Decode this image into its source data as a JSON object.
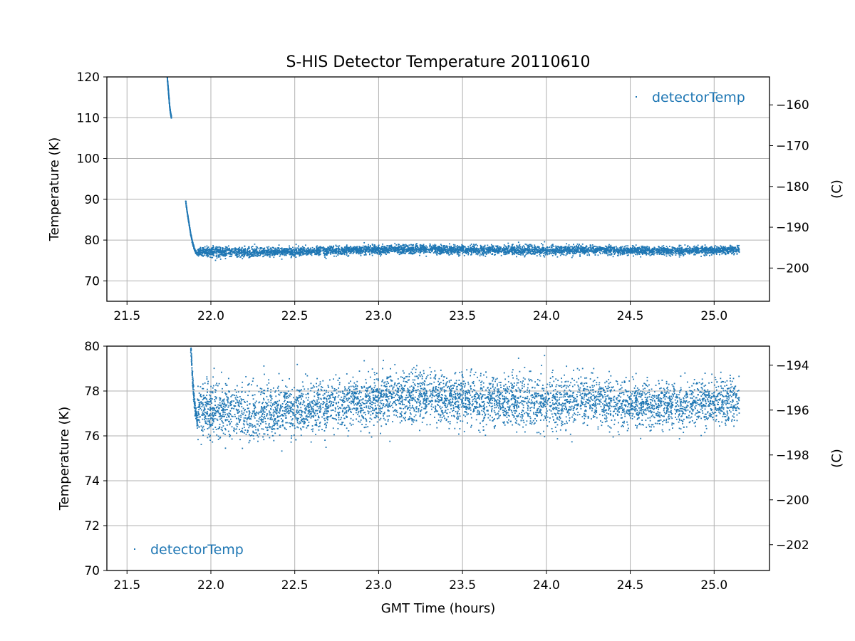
{
  "figure": {
    "title": "S-HIS Detector Temperature 20110610",
    "xlabel": "GMT Time (hours)"
  },
  "colors": {
    "series": "#1f77b4",
    "grid": "#b0b0b0",
    "axes": "#000000",
    "background": "#ffffff"
  },
  "chart_data": [
    {
      "type": "scatter",
      "title": "S-HIS Detector Temperature 20110610",
      "xlabel": "",
      "ylabel": "Temperature (K)",
      "ylabel_right": "(C)",
      "xlim": [
        21.38,
        25.33
      ],
      "ylim": [
        65,
        120
      ],
      "ylim_right": [
        -208.15,
        -153.15
      ],
      "xticks": [
        "21.5",
        "22.0",
        "22.5",
        "23.0",
        "23.5",
        "24.0",
        "24.5",
        "25.0"
      ],
      "yticks": [
        "70",
        "80",
        "90",
        "100",
        "110",
        "120"
      ],
      "yticks_right": [
        "−160",
        "−170",
        "−180",
        "−190",
        "−200"
      ],
      "grid": true,
      "legend": "upper right",
      "series": [
        {
          "name": "detectorTemp",
          "segments": [
            {
              "x": [
                21.74,
                21.745,
                21.75,
                21.755,
                21.76,
                21.765
              ],
              "y": [
                120,
                117.5,
                115,
                112.5,
                111,
                110
              ]
            },
            {
              "x": [
                21.85,
                21.86,
                21.87,
                21.88,
                21.89,
                21.9,
                21.91,
                21.92
              ],
              "y": [
                89.5,
                86.5,
                84,
                81.5,
                79.5,
                78,
                77,
                76.5
              ]
            }
          ],
          "band": {
            "x": [
              21.92,
              22.1,
              22.25,
              22.5,
              22.75,
              23.0,
              23.25,
              23.5,
              23.75,
              24.0,
              24.25,
              24.5,
              24.75,
              25.0,
              25.15
            ],
            "y_mean": [
              77.2,
              77.1,
              77.0,
              77.2,
              77.4,
              77.6,
              77.7,
              77.6,
              77.5,
              77.5,
              77.6,
              77.4,
              77.4,
              77.5,
              77.6
            ],
            "y_spread": [
              1.2,
              1.3,
              1.3,
              1.1,
              1.1,
              1.1,
              1.1,
              1.1,
              1.1,
              1.1,
              1.1,
              1.0,
              1.0,
              1.0,
              1.0
            ]
          }
        }
      ]
    },
    {
      "type": "scatter",
      "xlabel": "GMT Time (hours)",
      "ylabel": "Temperature (K)",
      "ylabel_right": "(C)",
      "xlim": [
        21.38,
        25.33
      ],
      "ylim": [
        70,
        80
      ],
      "ylim_right": [
        -203.15,
        -193.15
      ],
      "xticks": [
        "21.5",
        "22.0",
        "22.5",
        "23.0",
        "23.5",
        "24.0",
        "24.5",
        "25.0"
      ],
      "yticks": [
        "70",
        "72",
        "74",
        "76",
        "78",
        "80"
      ],
      "yticks_right": [
        "−194",
        "−196",
        "−198",
        "−200",
        "−202"
      ],
      "grid": true,
      "legend": "lower left",
      "series": [
        {
          "name": "detectorTemp",
          "segments": [
            {
              "x": [
                21.88,
                21.89,
                21.9,
                21.91,
                21.92
              ],
              "y": [
                80,
                78.6,
                77.6,
                77.0,
                76.6
              ]
            }
          ],
          "band": {
            "x": [
              21.92,
              22.1,
              22.25,
              22.5,
              22.75,
              23.0,
              23.25,
              23.5,
              23.75,
              24.0,
              24.25,
              24.5,
              24.75,
              25.0,
              25.15
            ],
            "y_mean": [
              77.2,
              77.1,
              77.0,
              77.2,
              77.4,
              77.6,
              77.7,
              77.6,
              77.5,
              77.5,
              77.6,
              77.4,
              77.4,
              77.5,
              77.6
            ],
            "y_spread": [
              1.2,
              1.3,
              1.3,
              1.1,
              1.1,
              1.1,
              1.1,
              1.1,
              1.1,
              1.1,
              1.1,
              1.0,
              1.0,
              1.0,
              1.0
            ]
          }
        }
      ]
    }
  ]
}
